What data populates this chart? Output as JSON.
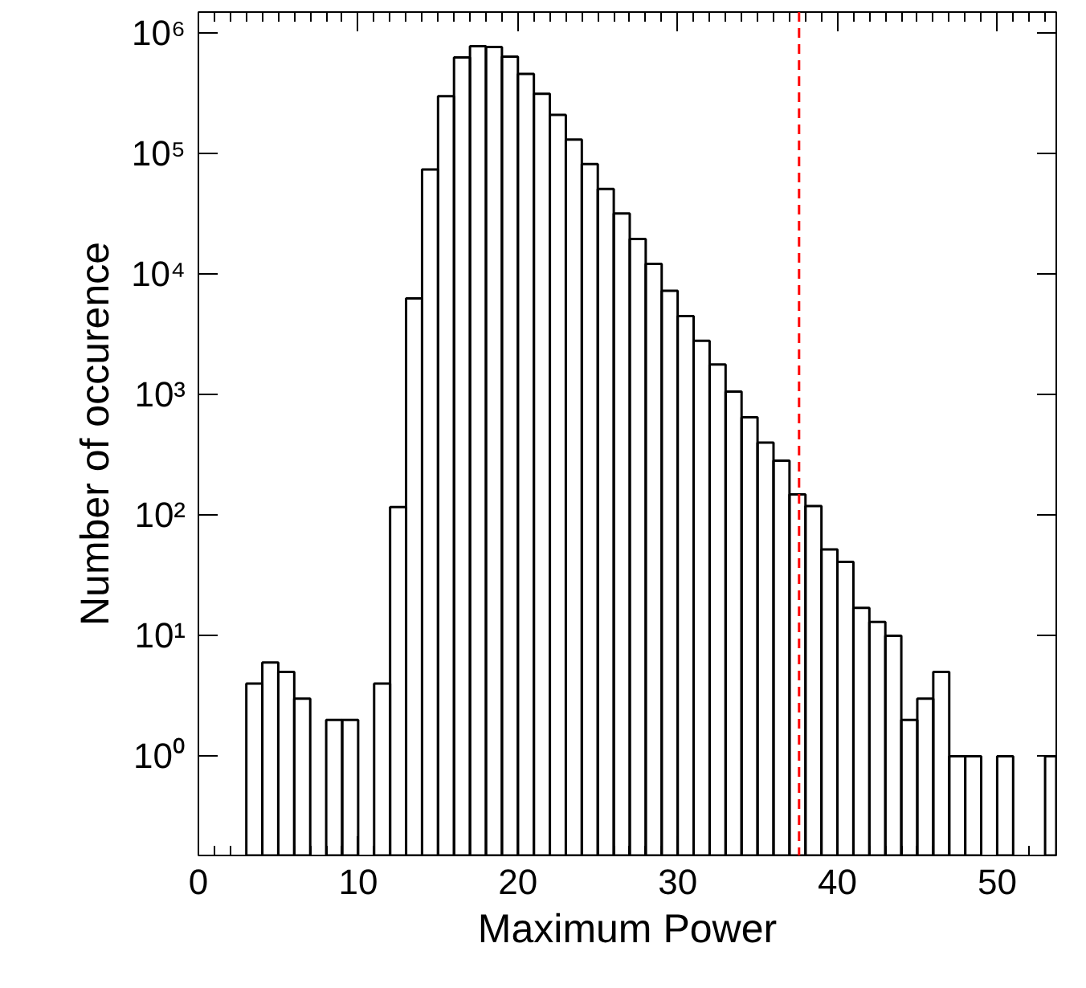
{
  "chart_data": {
    "type": "histogram",
    "xlabel": "Maximum Power",
    "ylabel": "Number of occurence",
    "bins": [
      3,
      4,
      5,
      6,
      7,
      8,
      9,
      10,
      11,
      12,
      13,
      14,
      15,
      16,
      17,
      18,
      19,
      20,
      21,
      22,
      23,
      24,
      25,
      26,
      27,
      28,
      29,
      30,
      31,
      32,
      33,
      34,
      35,
      36,
      37,
      38,
      39,
      40,
      41,
      42,
      43,
      44,
      45,
      46,
      47,
      48,
      49,
      50,
      51,
      53,
      53.7
    ],
    "values": [
      4,
      6,
      5,
      3,
      null,
      2,
      2,
      null,
      4,
      117,
      6300,
      74000,
      300000,
      630000,
      780000,
      770000,
      640000,
      460000,
      315000,
      210000,
      131000,
      82000,
      51000,
      32000,
      19600,
      12200,
      7300,
      4500,
      2800,
      1780,
      1060,
      650,
      400,
      284,
      149,
      119,
      52,
      41,
      17,
      13,
      10,
      2,
      3,
      5,
      1,
      1,
      null,
      1,
      null,
      1
    ],
    "color": "#000000",
    "log": "y",
    "xlim": [
      0,
      53.7
    ],
    "xticks": [
      0,
      10,
      20,
      30,
      40,
      50
    ],
    "ylim": [
      0.15,
      1500000
    ],
    "yticks": [
      {
        "value": 1,
        "label": "10⁰"
      },
      {
        "value": 10,
        "label": "10¹"
      },
      {
        "value": 100,
        "label": "10²"
      },
      {
        "value": 1000,
        "label": "10³"
      },
      {
        "value": 10000,
        "label": "10⁴"
      },
      {
        "value": 100000,
        "label": "10⁵"
      },
      {
        "value": 1000000,
        "label": "10⁶"
      }
    ],
    "ref_lines": [
      {
        "axis": "x",
        "value": 37.6,
        "label": null,
        "color": "#ff0000",
        "line_style": "dashed"
      }
    ],
    "grid": false
  }
}
